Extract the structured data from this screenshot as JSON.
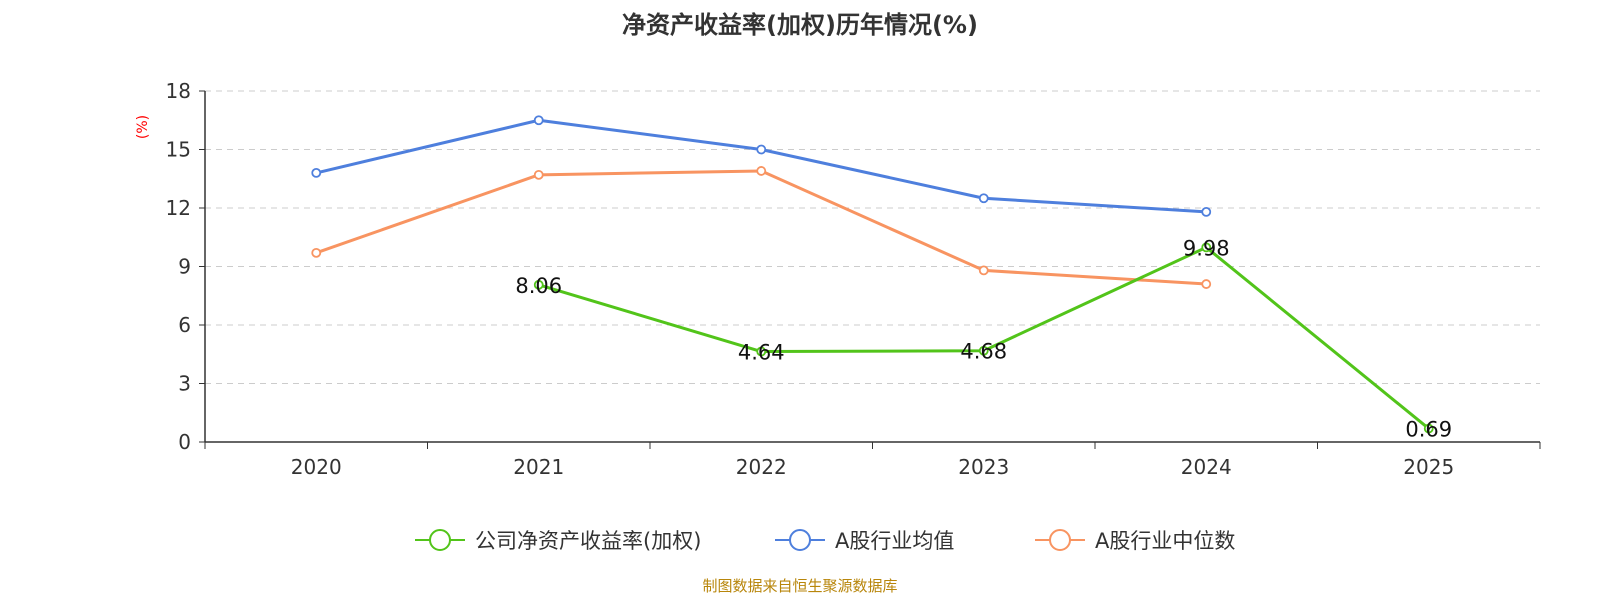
{
  "chart_data": {
    "type": "line",
    "title": "净资产收益率(加权)历年情况(%)",
    "ylabel": "(%)",
    "xlabel": "",
    "categories": [
      "2020",
      "2021",
      "2022",
      "2023",
      "2024",
      "2025"
    ],
    "ylim": [
      0,
      18
    ],
    "yticks": [
      0,
      3,
      6,
      9,
      12,
      15,
      18
    ],
    "grid": true,
    "legend_position": "bottom-center",
    "series": [
      {
        "name": "公司净资产收益率(加权)",
        "color": "#52c41a",
        "values": [
          null,
          8.06,
          4.64,
          4.68,
          9.98,
          0.69
        ],
        "labels": [
          null,
          "8.06",
          "4.64",
          "4.68",
          "9.98",
          "0.69"
        ]
      },
      {
        "name": "A股行业均值",
        "color": "#4e7fdd",
        "values": [
          13.8,
          16.5,
          15.0,
          12.5,
          11.8,
          null
        ]
      },
      {
        "name": "A股行业中位数",
        "color": "#f89461",
        "values": [
          9.7,
          13.7,
          13.9,
          8.8,
          8.1,
          null
        ]
      }
    ],
    "source": "制图数据来自恒生聚源数据库",
    "colors": {
      "source_text": "#b8860b",
      "ylabel_text": "#ff0000",
      "grid": "#cccccc",
      "axis": "#333333"
    }
  }
}
